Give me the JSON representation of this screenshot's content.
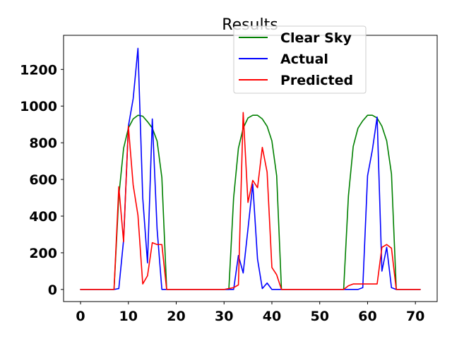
{
  "chart_data": {
    "type": "line",
    "title": "Results",
    "xlabel": "",
    "ylabel": "",
    "xlim": [
      -3.55,
      74.55
    ],
    "ylim": [
      -66,
      1386
    ],
    "xticks": [
      0,
      10,
      20,
      30,
      40,
      50,
      60,
      70
    ],
    "yticks": [
      0,
      200,
      400,
      600,
      800,
      1000,
      1200
    ],
    "xtick_labels": [
      "0",
      "10",
      "20",
      "30",
      "40",
      "50",
      "60",
      "70"
    ],
    "ytick_labels": [
      "0",
      "200",
      "400",
      "600",
      "800",
      "1000",
      "1200"
    ],
    "grid": false,
    "legend_position": "top-center",
    "x": [
      0,
      1,
      2,
      3,
      4,
      5,
      6,
      7,
      8,
      9,
      10,
      11,
      12,
      13,
      14,
      15,
      16,
      17,
      18,
      19,
      20,
      21,
      22,
      23,
      24,
      25,
      26,
      27,
      28,
      29,
      30,
      31,
      32,
      33,
      34,
      35,
      36,
      37,
      38,
      39,
      40,
      41,
      42,
      43,
      44,
      45,
      46,
      47,
      48,
      49,
      50,
      51,
      52,
      53,
      54,
      55,
      56,
      57,
      58,
      59,
      60,
      61,
      62,
      63,
      64,
      65,
      66,
      67,
      68,
      69,
      70,
      71
    ],
    "series": [
      {
        "name": "Clear Sky",
        "color": "#008000",
        "values": [
          0,
          0,
          0,
          0,
          0,
          0,
          0,
          0,
          510,
          770,
          880,
          930,
          950,
          945,
          915,
          880,
          810,
          610,
          0,
          0,
          0,
          0,
          0,
          0,
          0,
          0,
          0,
          0,
          0,
          0,
          0,
          0,
          500,
          770,
          880,
          935,
          950,
          950,
          930,
          890,
          810,
          620,
          0,
          0,
          0,
          0,
          0,
          0,
          0,
          0,
          0,
          0,
          0,
          0,
          0,
          0,
          510,
          780,
          880,
          920,
          950,
          950,
          935,
          890,
          810,
          630,
          0,
          0,
          0,
          0,
          0,
          0
        ]
      },
      {
        "name": "Actual",
        "color": "#0000ff",
        "values": [
          0,
          0,
          0,
          0,
          0,
          0,
          0,
          0,
          5,
          270,
          890,
          1040,
          1315,
          500,
          145,
          930,
          330,
          0,
          0,
          0,
          0,
          0,
          0,
          0,
          0,
          0,
          0,
          0,
          0,
          0,
          0,
          0,
          0,
          185,
          90,
          330,
          575,
          165,
          5,
          35,
          0,
          0,
          0,
          0,
          0,
          0,
          0,
          0,
          0,
          0,
          0,
          0,
          0,
          0,
          0,
          0,
          0,
          0,
          0,
          10,
          620,
          760,
          940,
          100,
          230,
          10,
          0,
          0,
          0,
          0,
          0,
          0
        ]
      },
      {
        "name": "Predicted",
        "color": "#ff0000",
        "values": [
          0,
          0,
          0,
          0,
          0,
          0,
          0,
          0,
          560,
          260,
          890,
          570,
          405,
          30,
          75,
          255,
          245,
          245,
          0,
          0,
          0,
          0,
          0,
          0,
          0,
          0,
          0,
          0,
          0,
          0,
          0,
          5,
          10,
          25,
          965,
          475,
          595,
          555,
          775,
          640,
          120,
          80,
          0,
          0,
          0,
          0,
          0,
          0,
          0,
          0,
          0,
          0,
          0,
          0,
          0,
          0,
          20,
          30,
          30,
          30,
          30,
          30,
          30,
          230,
          245,
          225,
          0,
          0,
          0,
          0,
          0,
          0
        ]
      }
    ]
  }
}
